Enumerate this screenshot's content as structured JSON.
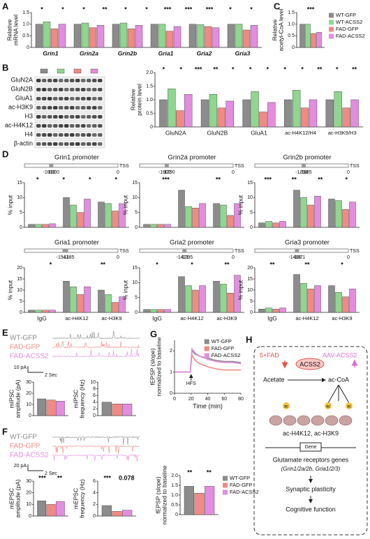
{
  "panels": [
    "A",
    "B",
    "C",
    "D",
    "E",
    "F",
    "G",
    "H"
  ],
  "chart_data": [
    {
      "type": "bar",
      "ylabel": [
        "Relative",
        "mRNA level"
      ],
      "categories": [
        "Grin1",
        "Grin2a",
        "Grin2b",
        "Gria1",
        "Gria2",
        "Gria3"
      ],
      "ylim": [
        0,
        1.5
      ],
      "yticks": [
        0,
        0.5,
        {
          "value": 1,
          "label": "1.0"
        },
        1.5
      ],
      "series": [
        {
          "name": "WT-GFP",
          "color": "#8c8c8c",
          "values": [
            1,
            1,
            1,
            1,
            1,
            1
          ]
        },
        {
          "name": "WT-ACSS2",
          "color": "#8fd68f",
          "values": [
            1.1,
            1.05,
            1.05,
            1,
            0.98,
            1
          ]
        },
        {
          "name": "FAD-GFP",
          "color": "#f08a84",
          "values": [
            0.8,
            0.85,
            0.8,
            0.7,
            0.9,
            0.75
          ]
        },
        {
          "name": "FAD-ACSS2",
          "color": "#e28de0",
          "values": [
            1,
            0.95,
            0.95,
            0.9,
            0.85,
            0.95
          ]
        }
      ],
      "annotations": [
        "*",
        "*",
        "*",
        "**",
        "*",
        "*",
        "***",
        "***",
        "***",
        "*",
        "*"
      ]
    },
    {
      "type": "bar",
      "ylabel": [
        "Relative",
        "acetyl-CoA level"
      ],
      "categories": [
        null
      ],
      "ylim": [
        0,
        1.5
      ],
      "yticks": [
        0,
        0.5,
        {
          "value": 1,
          "label": "1.0"
        },
        1.5
      ],
      "legend": "right",
      "series": [
        {
          "name": "WT-GFP",
          "color": "#8c8c8c",
          "values": [
            1
          ]
        },
        {
          "name": "WT-ACSS2",
          "color": "#8fd68f",
          "values": [
            1
          ]
        },
        {
          "name": "FAD-GFP",
          "color": "#f08a84",
          "values": [
            0.6
          ]
        },
        {
          "name": "FAD-ACSS2",
          "color": "#e28de0",
          "values": [
            0.65
          ]
        }
      ],
      "annotations": [
        "***"
      ]
    },
    {
      "type": "bar",
      "ylabel": [
        "Relative",
        "protein level"
      ],
      "categories": [
        "GluN2A",
        "GluN2B",
        "GluA1",
        "ac-H4K12/H4",
        "ac-H3K9/H3"
      ],
      "ylim": [
        0,
        2
      ],
      "yticks": [
        0,
        0.5,
        {
          "value": 1,
          "label": "1.0"
        },
        1.5,
        {
          "value": 2,
          "label": "2.0"
        }
      ],
      "series": [
        {
          "name": "WT-GFP",
          "color": "#8c8c8c",
          "values": [
            1,
            1,
            1,
            1,
            1
          ]
        },
        {
          "name": "WT-ACSS2",
          "color": "#8fd68f",
          "values": [
            1.4,
            1.2,
            1.3,
            1.35,
            1.3
          ]
        },
        {
          "name": "FAD-GFP",
          "color": "#f08a84",
          "values": [
            0.6,
            0.7,
            0.55,
            0.7,
            0.7
          ]
        },
        {
          "name": "FAD-ACSS2",
          "color": "#e28de0",
          "values": [
            1.2,
            0.95,
            0.9,
            1,
            1
          ]
        }
      ],
      "annotations": [
        "*",
        "*",
        "***",
        "**",
        "*",
        "*",
        "*",
        "*",
        "*",
        "**",
        "*",
        "**"
      ]
    },
    {
      "type": "bar",
      "title": "Grin1 promoter",
      "region": [
        -1912,
        -1800,
        0
      ],
      "tss": "TSS",
      "ylabel": "% input",
      "ylim": [
        0,
        15
      ],
      "yticks": [
        0,
        5,
        10,
        15
      ],
      "series": [
        {
          "name": "WT-GFP",
          "color": "#8c8c8c",
          "values": [
            1,
            10,
            8.5
          ]
        },
        {
          "name": "WT-ACSS2",
          "color": "#8fd68f",
          "values": [
            1,
            7.5,
            8
          ]
        },
        {
          "name": "FAD-GFP",
          "color": "#f08a84",
          "values": [
            1,
            5,
            5.5
          ]
        },
        {
          "name": "FAD-ACSS2",
          "color": "#e28de0",
          "values": [
            1.2,
            9.5,
            8
          ]
        }
      ],
      "annotations": [
        "*",
        "*",
        "*",
        "*"
      ]
    },
    {
      "type": "bar",
      "title": "Grin2a promoter",
      "region": [
        -1902,
        -1790,
        0
      ],
      "tss": "TSS",
      "ylabel": "% input",
      "ylim": [
        0,
        15
      ],
      "yticks": [
        0,
        5,
        10,
        15
      ],
      "series": [
        {
          "name": "WT-GFP",
          "color": "#8c8c8c",
          "values": [
            1,
            12.5,
            8
          ]
        },
        {
          "name": "WT-ACSS2",
          "color": "#8fd68f",
          "values": [
            1,
            7,
            7.5
          ]
        },
        {
          "name": "FAD-GFP",
          "color": "#f08a84",
          "values": [
            1,
            6.5,
            4
          ]
        },
        {
          "name": "FAD-ACSS2",
          "color": "#e28de0",
          "values": [
            1,
            8,
            8
          ]
        }
      ],
      "annotations": [
        "***",
        "**"
      ]
    },
    {
      "type": "bar",
      "title": "Grin2b promoter",
      "region": [
        -1298,
        -1185,
        0
      ],
      "tss": "TSS",
      "ylabel": "% input",
      "ylim": [
        0,
        15
      ],
      "yticks": [
        0,
        5,
        10,
        15
      ],
      "series": [
        {
          "name": "WT-GFP",
          "color": "#8c8c8c",
          "values": [
            1.5,
            12.5,
            9.5
          ]
        },
        {
          "name": "WT-ACSS2",
          "color": "#8fd68f",
          "values": [
            2,
            10,
            9
          ]
        },
        {
          "name": "FAD-GFP",
          "color": "#f08a84",
          "values": [
            1.5,
            7.5,
            6
          ]
        },
        {
          "name": "FAD-ACSS2",
          "color": "#e28de0",
          "values": [
            2,
            10.5,
            8.5
          ]
        }
      ],
      "annotations": [
        "***",
        "**",
        "**",
        "*"
      ]
    },
    {
      "type": "bar",
      "title": "Gria1 promoter",
      "region": [
        -1541,
        -1385,
        0
      ],
      "tss": "TSS",
      "ylabel": "% input",
      "ylim": [
        0,
        20
      ],
      "yticks": [
        0,
        5,
        10,
        15,
        20
      ],
      "categories": [
        "IgG",
        "ac-H4K12",
        "ac-H3K9"
      ],
      "series": [
        {
          "name": "WT-GFP",
          "color": "#8c8c8c",
          "values": [
            1,
            14,
            10
          ]
        },
        {
          "name": "WT-ACSS2",
          "color": "#8fd68f",
          "values": [
            1,
            11.5,
            8
          ]
        },
        {
          "name": "FAD-GFP",
          "color": "#f08a84",
          "values": [
            1,
            8,
            4.5
          ]
        },
        {
          "name": "FAD-ACSS2",
          "color": "#e28de0",
          "values": [
            1,
            11.5,
            7
          ]
        }
      ],
      "annotations": [
        "*",
        "**"
      ]
    },
    {
      "type": "bar",
      "title": "Gria2 promoter",
      "region": [
        -1411,
        -1295,
        0
      ],
      "tss": "TSS",
      "ylabel": "% input",
      "ylim": [
        0,
        15
      ],
      "yticks": [
        0,
        5,
        10,
        15
      ],
      "categories": [
        "IgG",
        "ac-H4K12",
        "ac-H3K9"
      ],
      "series": [
        {
          "name": "WT-GFP",
          "color": "#8c8c8c",
          "values": [
            1,
            12,
            10.5
          ]
        },
        {
          "name": "WT-ACSS2",
          "color": "#8fd68f",
          "values": [
            1,
            9,
            9.5
          ]
        },
        {
          "name": "FAD-GFP",
          "color": "#f08a84",
          "values": [
            1,
            7.5,
            6.5
          ]
        },
        {
          "name": "FAD-ACSS2",
          "color": "#e28de0",
          "values": [
            1,
            9,
            12.5
          ]
        }
      ],
      "annotations": [
        "*",
        "*",
        "**"
      ]
    },
    {
      "type": "bar",
      "title": "Gria3 promoter",
      "region": [
        -1486,
        -1371,
        0
      ],
      "tss": "TSS",
      "ylabel": "% input",
      "ylim": [
        0,
        20
      ],
      "yticks": [
        0,
        5,
        10,
        15,
        20
      ],
      "categories": [
        "IgG",
        "ac-H4K12",
        "ac-H3K9"
      ],
      "series": [
        {
          "name": "WT-GFP",
          "color": "#8c8c8c",
          "values": [
            1.5,
            17,
            12
          ]
        },
        {
          "name": "WT-ACSS2",
          "color": "#8fd68f",
          "values": [
            2,
            13,
            9
          ]
        },
        {
          "name": "FAD-GFP",
          "color": "#f08a84",
          "values": [
            1.5,
            10.5,
            7
          ]
        },
        {
          "name": "FAD-ACSS2",
          "color": "#e28de0",
          "values": [
            2,
            12,
            10.5
          ]
        }
      ],
      "annotations": [
        "**",
        "**",
        "*"
      ]
    },
    {
      "type": "bar",
      "ylabel": [
        "mIPSC",
        "amplitude (pA)"
      ],
      "ylim": [
        0,
        30
      ],
      "yticks": [
        0,
        10,
        20,
        30
      ],
      "series": [
        {
          "name": "WT-GFP",
          "color": "#8c8c8c",
          "values": [
            15
          ]
        },
        {
          "name": "FAD-GFP",
          "color": "#f08a84",
          "values": [
            14
          ]
        },
        {
          "name": "FAD-ACSS2",
          "color": "#e28de0",
          "values": [
            13
          ]
        }
      ]
    },
    {
      "type": "bar",
      "ylabel": [
        "mIPSC",
        "frequency (Hz)"
      ],
      "ylim": [
        0,
        10
      ],
      "yticks": [
        0,
        2,
        4,
        6,
        8,
        10
      ],
      "series": [
        {
          "name": "WT-GFP",
          "color": "#8c8c8c",
          "values": [
            4
          ]
        },
        {
          "name": "FAD-GFP",
          "color": "#f08a84",
          "values": [
            3.5
          ]
        },
        {
          "name": "FAD-ACSS2",
          "color": "#e28de0",
          "values": [
            3.5
          ]
        }
      ]
    },
    {
      "type": "bar",
      "ylabel": [
        "mEPSC",
        "amplitude (pA)"
      ],
      "ylim": [
        0,
        30
      ],
      "yticks": [
        0,
        10,
        20,
        30
      ],
      "series": [
        {
          "name": "WT-GFP",
          "color": "#8c8c8c",
          "values": [
            13
          ]
        },
        {
          "name": "FAD-GFP",
          "color": "#f08a84",
          "values": [
            10
          ]
        },
        {
          "name": "FAD-ACSS2",
          "color": "#e28de0",
          "values": [
            12.5
          ]
        }
      ],
      "annotations": [
        "***",
        "**"
      ]
    },
    {
      "type": "bar",
      "ylabel": [
        "mEPSC",
        "frequency (Hz)"
      ],
      "ylim": [
        0,
        6
      ],
      "yticks": [
        0,
        2,
        4,
        6
      ],
      "series": [
        {
          "name": "WT-GFP",
          "color": "#8c8c8c",
          "values": [
            1.8
          ]
        },
        {
          "name": "FAD-GFP",
          "color": "#f08a84",
          "values": [
            0.8
          ]
        },
        {
          "name": "FAD-ACSS2",
          "color": "#e28de0",
          "values": [
            1
          ]
        }
      ],
      "annotations": [
        "***",
        "0.078"
      ]
    },
    {
      "type": "line",
      "ylabel": [
        "fEPSP (slope)",
        "normalized to baseline"
      ],
      "xlabel": "Time (min)",
      "x": [
        0,
        5,
        10,
        15,
        19,
        21,
        25,
        30,
        40,
        50,
        60,
        70,
        80
      ],
      "xlim": [
        0,
        80
      ],
      "xticks": [
        0,
        20,
        40,
        60,
        80
      ],
      "ylim": [
        0,
        2.5
      ],
      "yticks": [
        0,
        1,
        2
      ],
      "legend": "upper right",
      "series": [
        {
          "name": "WT-GFP",
          "color": "#8c8c8c",
          "values": [
            1,
            1,
            1,
            1,
            1,
            2,
            1.85,
            1.75,
            1.65,
            1.55,
            1.5,
            1.5,
            1.45
          ]
        },
        {
          "name": "FAD-GFP",
          "color": "#f08a84",
          "values": [
            1,
            1,
            1,
            1,
            1,
            1.8,
            1.55,
            1.4,
            1.25,
            1.15,
            1.1,
            1.1,
            1.1
          ]
        },
        {
          "name": "FAD-ACSS2",
          "color": "#e28de0",
          "values": [
            1,
            1,
            1,
            1,
            1,
            2.1,
            1.9,
            1.75,
            1.6,
            1.5,
            1.45,
            1.45,
            1.4
          ]
        }
      ],
      "annotations": [
        "HFS"
      ]
    },
    {
      "type": "bar",
      "ylabel": [
        "fEPSP (slope)",
        "normalized to baseline"
      ],
      "ylim": [
        0,
        2
      ],
      "yticks": [
        0,
        0.5,
        {
          "value": 1,
          "label": "1.0"
        },
        1.5,
        {
          "value": 2,
          "label": "2.0"
        }
      ],
      "legend": "right",
      "series": [
        {
          "name": "WT-GFP",
          "color": "#8c8c8c",
          "values": [
            1.45
          ]
        },
        {
          "name": "FAD-GFP",
          "color": "#f08a84",
          "values": [
            1.1
          ]
        },
        {
          "name": "FAD-ACSS2",
          "color": "#e28de0",
          "values": [
            1.45
          ]
        }
      ],
      "annotations": [
        "**",
        "**"
      ]
    }
  ],
  "blot": {
    "labels": [
      "GluN2A",
      "GluN2B",
      "GluA1",
      "ac-H3K9",
      "H3",
      "ac-H4K12",
      "H4",
      "β-actin"
    ]
  },
  "traces": {
    "e_labels": [
      "WT-GFP",
      "FAD-GFP",
      "FAD-ACSS2"
    ],
    "e_scale": [
      "10 pA",
      "2 Sec"
    ],
    "f_labels": [
      "WT-GFP",
      "FAD-GFP",
      "FAD-ACSS2"
    ],
    "f_scale": [
      "20 pA",
      "2 Sec"
    ]
  },
  "diagram": {
    "model": "5×FAD",
    "virus": "AAV-ACSS2",
    "enzyme": "ACSS2",
    "substrate": "Acetate",
    "product": "ac-CoA",
    "mark": "ac",
    "histones": "ac-H4K12, ac-H3K9",
    "gene": "Gene",
    "genes": "Glutamate receptors genes",
    "gene_list": "(Grin1/2a/2b, Gria1/2/3)",
    "plasticity": "Synaptic plasticity",
    "cognition": "Cognitive  function"
  }
}
